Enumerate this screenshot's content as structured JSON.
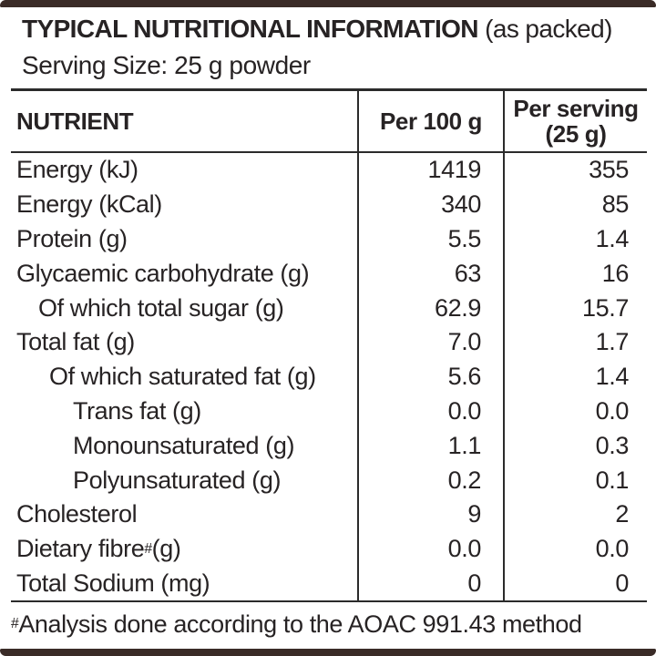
{
  "header": {
    "title_bold": "TYPICAL NUTRITIONAL INFORMATION",
    "title_regular": " (as packed)",
    "serving_size": "Serving Size: 25 g powder"
  },
  "table": {
    "columns": {
      "nutrient": "NUTRIENT",
      "per_100g": "Per 100 g",
      "per_serving_line1": "Per serving",
      "per_serving_line2": "(25 g)"
    },
    "rows": [
      {
        "label": "Energy (kJ)",
        "indent": 0,
        "per_100g": "1419",
        "per_serving": "355"
      },
      {
        "label": "Energy (kCal)",
        "indent": 0,
        "per_100g": "340",
        "per_serving": "85"
      },
      {
        "label": "Protein (g)",
        "indent": 0,
        "per_100g": "5.5",
        "per_serving": "1.4"
      },
      {
        "label": "Glycaemic carbohydrate (g)",
        "indent": 0,
        "per_100g": "63",
        "per_serving": "16"
      },
      {
        "label": "Of which total sugar (g)",
        "indent": 1,
        "per_100g": "62.9",
        "per_serving": "15.7"
      },
      {
        "label": "Total fat (g)",
        "indent": 0,
        "per_100g": "7.0",
        "per_serving": "1.7"
      },
      {
        "label": "Of which saturated fat (g)",
        "indent": 2,
        "per_100g": "5.6",
        "per_serving": "1.4"
      },
      {
        "label": "Trans fat (g)",
        "indent": 3,
        "per_100g": "0.0",
        "per_serving": "0.0"
      },
      {
        "label": "Monounsaturated (g)",
        "indent": 3,
        "per_100g": "1.1",
        "per_serving": "0.3"
      },
      {
        "label": "Polyunsaturated (g)",
        "indent": 3,
        "per_100g": "0.2",
        "per_serving": "0.1"
      },
      {
        "label": "Cholesterol",
        "indent": 0,
        "per_100g": "9",
        "per_serving": "2"
      },
      {
        "label": "Dietary fibre",
        "sup": "#",
        "post": " (g)",
        "indent": 0,
        "per_100g": "0.0",
        "per_serving": "0.0"
      },
      {
        "label": "Total Sodium (mg)",
        "indent": 0,
        "per_100g": "0",
        "per_serving": "0"
      }
    ]
  },
  "footnote": {
    "sup": "#",
    "text": "Analysis done according to the AOAC 991.43 method"
  },
  "colors": {
    "bar_brown": "#3a2b27",
    "text_ink": "#272324",
    "rule_line": "#2b2b2b"
  }
}
